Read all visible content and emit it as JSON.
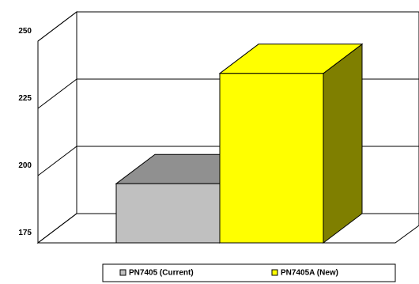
{
  "chart_data": {
    "type": "bar3d",
    "series": [
      {
        "name": "PN7405 (Current)",
        "color": "#c0c0c0",
        "values": [
          197
        ]
      },
      {
        "name": "PN7405A (New)",
        "color": "#ffff00",
        "values": [
          238
        ]
      }
    ],
    "ylim": [
      175,
      250
    ],
    "yticks": [
      175,
      200,
      225,
      250
    ],
    "grid": true,
    "legend": "bottom"
  }
}
